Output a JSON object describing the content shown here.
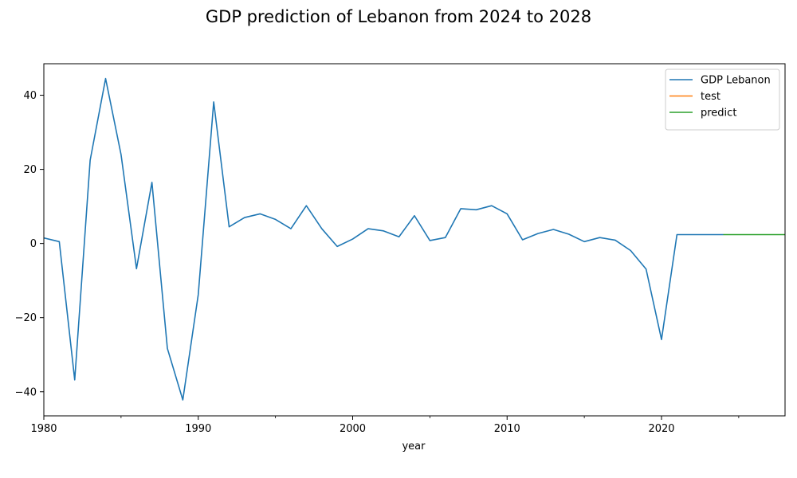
{
  "chart_data": {
    "type": "line",
    "title": "GDP prediction of Lebanon from 2024 to 2028",
    "xlabel": "year",
    "ylabel": "",
    "xlim": [
      1980,
      2028
    ],
    "ylim": [
      -46.5,
      48.5
    ],
    "x_ticks": [
      1980,
      1990,
      2000,
      2010,
      2020
    ],
    "x_tick_labels": [
      "1980",
      "1990",
      "2000",
      "2010",
      "2020"
    ],
    "x_minor_ticks": [
      1985,
      1995,
      2005,
      2015,
      2025
    ],
    "y_ticks": [
      -40,
      -20,
      0,
      20,
      40
    ],
    "y_tick_labels": [
      "−40",
      "−20",
      "0",
      "20",
      "40"
    ],
    "grid": false,
    "legend_position": "top-right",
    "series": [
      {
        "name": "GDP Lebanon",
        "color": "#1f77b4",
        "x": [
          1980,
          1981,
          1982,
          1983,
          1984,
          1985,
          1986,
          1987,
          1988,
          1989,
          1990,
          1991,
          1992,
          1993,
          1994,
          1995,
          1996,
          1997,
          1998,
          1999,
          2000,
          2001,
          2002,
          2003,
          2004,
          2005,
          2006,
          2007,
          2008,
          2009,
          2010,
          2011,
          2012,
          2013,
          2014,
          2015,
          2016,
          2017,
          2018,
          2019,
          2020,
          2021,
          2022,
          2023,
          2024
        ],
        "values": [
          1.5,
          0.5,
          -36.8,
          22.5,
          44.5,
          24.0,
          -6.8,
          16.5,
          -28.3,
          -42.2,
          -13.8,
          38.2,
          4.5,
          7.0,
          8.0,
          6.5,
          4.0,
          10.2,
          4.0,
          -0.8,
          1.2,
          4.0,
          3.4,
          1.8,
          7.5,
          0.8,
          1.6,
          9.4,
          9.1,
          10.2,
          8.0,
          1.0,
          2.7,
          3.8,
          2.5,
          0.5,
          1.6,
          0.9,
          -1.9,
          -6.9,
          -25.9,
          2.4,
          2.4,
          2.4,
          2.4
        ]
      },
      {
        "name": "test",
        "color": "#ff7f0e",
        "x": [],
        "values": []
      },
      {
        "name": "predict",
        "color": "#2ca02c",
        "x": [
          2024,
          2025,
          2026,
          2027,
          2028
        ],
        "values": [
          2.4,
          2.4,
          2.4,
          2.4,
          2.4
        ]
      }
    ]
  }
}
